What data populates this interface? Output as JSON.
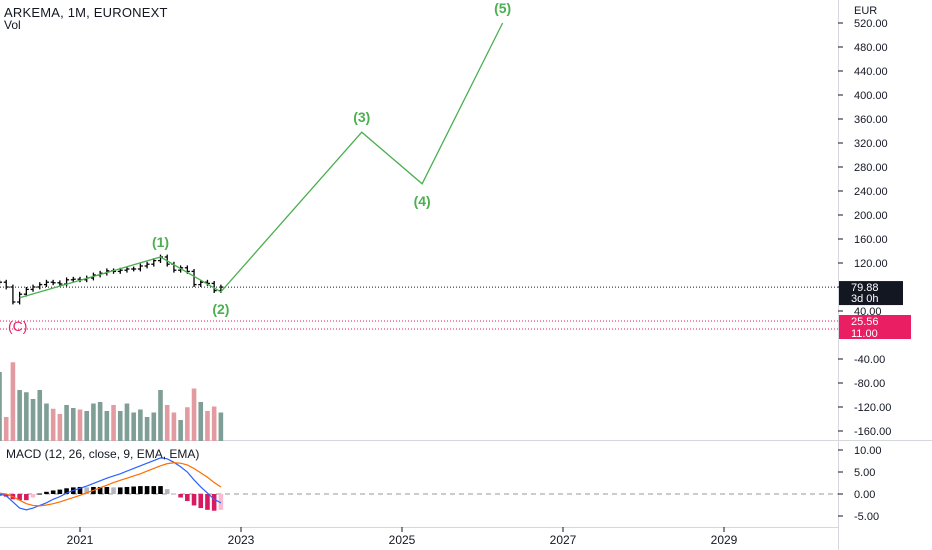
{
  "header": {
    "symbol_line": "ARKEMA, 1M, EURONEXT",
    "volume_label": "Vol"
  },
  "price_axis": {
    "currency": "EUR",
    "ticks": [
      "520.00",
      "480.00",
      "440.00",
      "400.00",
      "360.00",
      "320.00",
      "280.00",
      "240.00",
      "200.00",
      "160.00",
      "120.00",
      "80.00",
      "40.00",
      "-40.00",
      "-80.00",
      "-120.00",
      "-160.00"
    ],
    "current_price_label": "79.88",
    "countdown_label": "3d 0h",
    "level_labels": [
      "25.56",
      "11.00"
    ]
  },
  "macd_panel": {
    "title": "MACD (12, 26, close, 9, EMA, EMA)",
    "ticks": [
      "10.00",
      "5.00",
      "0.00",
      "-5.00"
    ]
  },
  "time_axis": {
    "ticks": [
      "2021",
      "2023",
      "2025",
      "2027",
      "2029"
    ]
  },
  "colors": {
    "wave_line": "#4caf50",
    "wave_label": "#4caf50",
    "level_pink": "#e91e63",
    "candles": "#000000",
    "vol_up": "#7f9f96",
    "vol_down": "#e39ba2",
    "macd_line": "#2962ff",
    "signal_line": "#ff6d00",
    "hist_down": "#d81b60",
    "hist_up": "#000000"
  },
  "chart_data": {
    "type": "line",
    "title": "ARKEMA, 1M, EURONEXT",
    "ylabel": "EUR",
    "elliott_wave": {
      "labels": [
        "(1)",
        "(2)",
        "(3)",
        "(4)",
        "(5)"
      ],
      "points": [
        {
          "date": "2020-04",
          "price": 62,
          "label": ""
        },
        {
          "date": "2022-01",
          "price": 130,
          "label": "(1)"
        },
        {
          "date": "2022-10",
          "price": 72,
          "label": "(2)"
        },
        {
          "date": "2024-07",
          "price": 338,
          "label": "(3)"
        },
        {
          "date": "2025-04",
          "price": 252,
          "label": "(4)"
        },
        {
          "date": "2026-04",
          "price": 520,
          "label": "(5)"
        }
      ]
    },
    "corrective_label": "(C)",
    "current_price": 79.88,
    "horizontal_levels": [
      25.56,
      11.0
    ],
    "price_bars": [
      {
        "date": "2020-01",
        "close": 88
      },
      {
        "date": "2020-02",
        "close": 80
      },
      {
        "date": "2020-03",
        "close": 55
      },
      {
        "date": "2020-04",
        "close": 68
      },
      {
        "date": "2020-05",
        "close": 76
      },
      {
        "date": "2020-06",
        "close": 80
      },
      {
        "date": "2020-07",
        "close": 84
      },
      {
        "date": "2020-08",
        "close": 88
      },
      {
        "date": "2020-09",
        "close": 87
      },
      {
        "date": "2020-10",
        "close": 85
      },
      {
        "date": "2020-11",
        "close": 92
      },
      {
        "date": "2020-12",
        "close": 93
      },
      {
        "date": "2021-01",
        "close": 92
      },
      {
        "date": "2021-02",
        "close": 95
      },
      {
        "date": "2021-03",
        "close": 100
      },
      {
        "date": "2021-04",
        "close": 103
      },
      {
        "date": "2021-05",
        "close": 107
      },
      {
        "date": "2021-06",
        "close": 106
      },
      {
        "date": "2021-07",
        "close": 108
      },
      {
        "date": "2021-08",
        "close": 110
      },
      {
        "date": "2021-09",
        "close": 110
      },
      {
        "date": "2021-10",
        "close": 115
      },
      {
        "date": "2021-11",
        "close": 118
      },
      {
        "date": "2021-12",
        "close": 124
      },
      {
        "date": "2022-01",
        "close": 130
      },
      {
        "date": "2022-02",
        "close": 118
      },
      {
        "date": "2022-03",
        "close": 108
      },
      {
        "date": "2022-04",
        "close": 112
      },
      {
        "date": "2022-05",
        "close": 106
      },
      {
        "date": "2022-06",
        "close": 84
      },
      {
        "date": "2022-07",
        "close": 88
      },
      {
        "date": "2022-08",
        "close": 86
      },
      {
        "date": "2022-09",
        "close": 74
      },
      {
        "date": "2022-10",
        "close": 79.88
      }
    ],
    "volume": [
      92,
      32,
      105,
      68,
      65,
      56,
      68,
      50,
      43,
      36,
      48,
      44,
      42,
      40,
      50,
      52,
      40,
      48,
      40,
      50,
      38,
      42,
      32,
      38,
      68,
      48,
      38,
      28,
      45,
      70,
      52,
      40,
      46,
      38
    ],
    "macd": {
      "macd_line": [
        0.0,
        -0.4,
        -1.8,
        -3.2,
        -3.6,
        -3.2,
        -2.6,
        -2.0,
        -1.2,
        -0.6,
        0.2,
        0.8,
        1.3,
        1.8,
        2.4,
        3.0,
        3.6,
        4.1,
        4.6,
        5.2,
        5.8,
        6.4,
        7.0,
        7.6,
        8.2,
        8.0,
        7.2,
        6.2,
        5.0,
        3.2,
        1.6,
        0.2,
        -1.2,
        -2.0
      ],
      "signal_line": [
        0.2,
        0.0,
        -0.6,
        -1.4,
        -2.2,
        -2.6,
        -2.7,
        -2.5,
        -2.2,
        -1.8,
        -1.3,
        -0.8,
        -0.3,
        0.3,
        0.8,
        1.4,
        2.0,
        2.6,
        3.1,
        3.6,
        4.1,
        4.6,
        5.2,
        5.8,
        6.4,
        6.9,
        7.1,
        7.0,
        6.6,
        5.8,
        4.8,
        3.8,
        2.6,
        1.6
      ],
      "histogram": [
        -0.4,
        -0.6,
        -1.2,
        -1.4,
        -1.4,
        -0.8,
        0.1,
        0.5,
        0.8,
        1.0,
        1.3,
        1.5,
        1.6,
        1.5,
        1.6,
        1.6,
        1.6,
        1.5,
        1.5,
        1.6,
        1.7,
        1.8,
        1.8,
        1.8,
        1.8,
        1.1,
        0.1,
        -0.8,
        -1.6,
        -2.6,
        -3.2,
        -3.6,
        -3.8,
        -3.6
      ]
    }
  }
}
